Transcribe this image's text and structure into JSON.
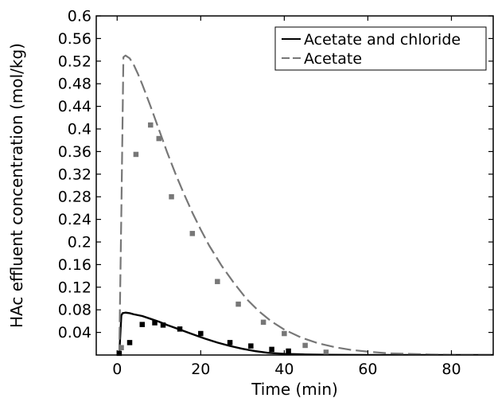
{
  "chart_data": {
    "type": "line",
    "title": "",
    "xlabel": "Time (min)",
    "ylabel": "HAc effluent concentration (mol/kg)",
    "xlim": [
      -5,
      90
    ],
    "ylim": [
      0,
      0.6
    ],
    "x_ticks": [
      0,
      20,
      40,
      60,
      80
    ],
    "y_ticks": [
      0.04,
      0.08,
      0.12,
      0.16,
      0.2,
      0.24,
      0.28,
      0.32,
      0.36,
      0.4,
      0.44,
      0.48,
      0.52,
      0.56,
      0.6
    ],
    "y_tick_labels": [
      "0.04",
      "0.08",
      "0.12",
      "0.16",
      "0.2",
      "0.24",
      "0.28",
      "0.32",
      "0.36",
      "0.4",
      "0.44",
      "0.48",
      "0.52",
      "0.56",
      "0.6"
    ],
    "grid": false,
    "legend_position": "top-right",
    "series": [
      {
        "name": "Acetate and chloride",
        "kind": "line",
        "style": "solid",
        "color": "#000000",
        "x": [
          0,
          0.5,
          1,
          1.3,
          2,
          3,
          4,
          6,
          8,
          10,
          12,
          15,
          18,
          21,
          24,
          27,
          30,
          33,
          36,
          40,
          45,
          50,
          55,
          60,
          70,
          80,
          90
        ],
        "y": [
          0,
          0,
          0.07,
          0.074,
          0.075,
          0.074,
          0.072,
          0.069,
          0.064,
          0.059,
          0.053,
          0.045,
          0.037,
          0.029,
          0.022,
          0.016,
          0.011,
          0.007,
          0.004,
          0.002,
          0.001,
          0.0005,
          0.0002,
          0.0001,
          0,
          0,
          0
        ]
      },
      {
        "name": "Acetate",
        "kind": "line",
        "style": "dashed",
        "color": "#777777",
        "x": [
          0,
          0.5,
          1,
          1.5,
          2,
          3,
          4,
          5,
          6,
          8,
          10,
          12,
          14,
          16,
          18,
          20,
          22,
          25,
          28,
          31,
          34,
          37,
          40,
          44,
          48,
          52,
          56,
          60,
          65,
          70,
          75,
          80,
          90
        ],
        "y": [
          0,
          0,
          0.25,
          0.527,
          0.53,
          0.525,
          0.513,
          0.497,
          0.479,
          0.44,
          0.399,
          0.358,
          0.32,
          0.285,
          0.252,
          0.222,
          0.194,
          0.158,
          0.127,
          0.099,
          0.077,
          0.059,
          0.045,
          0.031,
          0.021,
          0.014,
          0.009,
          0.006,
          0.003,
          0.002,
          0.001,
          0.0005,
          0
        ]
      },
      {
        "name": "Acetate and chloride",
        "kind": "markers",
        "color": "#000000",
        "x": [
          0.5,
          3,
          6,
          9,
          11,
          15,
          20,
          27,
          32,
          37,
          41
        ],
        "y": [
          0.003,
          0.022,
          0.054,
          0.057,
          0.053,
          0.046,
          0.038,
          0.022,
          0.016,
          0.01,
          0.007
        ]
      },
      {
        "name": "Acetate",
        "kind": "markers",
        "color": "#777777",
        "x": [
          1,
          4.5,
          8,
          10,
          13,
          18,
          24,
          29,
          35,
          40,
          45,
          50
        ],
        "y": [
          0.013,
          0.355,
          0.407,
          0.383,
          0.28,
          0.215,
          0.13,
          0.09,
          0.058,
          0.038,
          0.017,
          0.005
        ]
      }
    ]
  }
}
